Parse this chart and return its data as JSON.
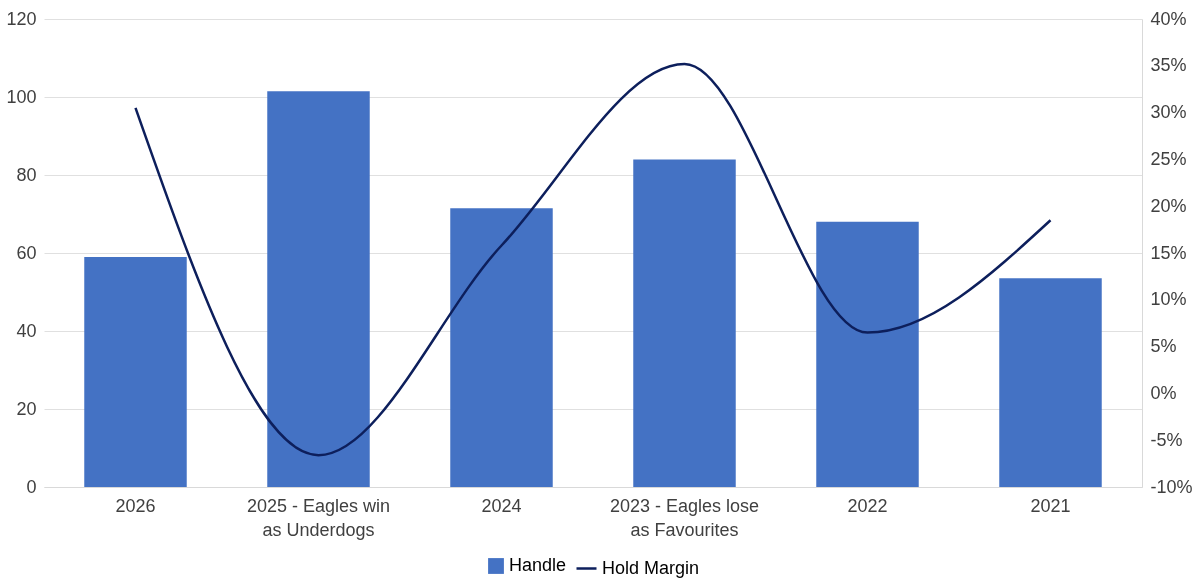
{
  "chart_data": {
    "type": "bar",
    "categories": [
      "2026",
      "2025 - Eagles win as Underdogs",
      "2024",
      "2023 - Eagles lose as Favourites",
      "2022",
      "2021"
    ],
    "series": [
      {
        "name": "Handle",
        "color": "#4472c4",
        "values": [
          59,
          101.5,
          71.5,
          84,
          68,
          53.5
        ]
      },
      {
        "name": "Hold Margin",
        "type": "line",
        "axis": "y2",
        "color": "#0d1f5c",
        "values": [
          30.5,
          -6.6,
          15.8,
          35.2,
          6.5,
          18.5
        ]
      }
    ],
    "ylim": [
      0,
      120
    ],
    "yticks": [
      0,
      20,
      40,
      60,
      80,
      100,
      120
    ],
    "y2lim": [
      -10,
      40
    ],
    "y2ticks": [
      {
        "value": -10,
        "label": "-10%"
      },
      {
        "value": -5,
        "label": "-5%"
      },
      {
        "value": 0,
        "label": "0%"
      },
      {
        "value": 5,
        "label": "5%"
      },
      {
        "value": 10,
        "label": "10%"
      },
      {
        "value": 15,
        "label": "15%"
      },
      {
        "value": 20,
        "label": "20%"
      },
      {
        "value": 25,
        "label": "25%"
      },
      {
        "value": 30,
        "label": "30%"
      },
      {
        "value": 35,
        "label": "35%"
      },
      {
        "value": 40,
        "label": "40%"
      }
    ],
    "grid": "y",
    "legend": "bottom",
    "marker": "none",
    "line_style": "solid"
  }
}
